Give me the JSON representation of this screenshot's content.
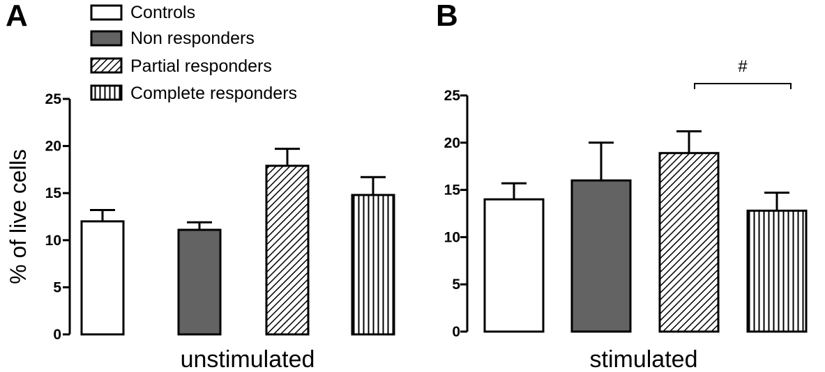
{
  "panel_labels": [
    "A",
    "B"
  ],
  "legend": [
    {
      "label": "Controls",
      "pattern": "white"
    },
    {
      "label": "Non responders",
      "pattern": "gray"
    },
    {
      "label": "Partial responders",
      "pattern": "diagonal"
    },
    {
      "label": "Complete responders",
      "pattern": "vertical"
    }
  ],
  "colors": {
    "gray_fill": "#636363",
    "stroke": "#000000"
  },
  "chart_data": [
    {
      "type": "bar",
      "panel": "A",
      "xlabel": "unstimulated",
      "ylabel": "% of live cells",
      "ylim": [
        0,
        25
      ],
      "yticks": [
        "0",
        "5",
        "10",
        "15",
        "20",
        "25"
      ],
      "categories": [
        "Controls",
        "Non responders",
        "Partial responders",
        "Complete responders"
      ],
      "values": [
        12.0,
        11.1,
        17.9,
        14.8
      ],
      "errors": [
        1.2,
        0.8,
        1.8,
        1.9
      ],
      "annotations": []
    },
    {
      "type": "bar",
      "panel": "B",
      "xlabel": "stimulated",
      "ylabel": "",
      "ylim": [
        0,
        25
      ],
      "yticks": [
        "0",
        "5",
        "10",
        "15",
        "20",
        "25"
      ],
      "categories": [
        "Controls",
        "Non responders",
        "Partial responders",
        "Complete responders"
      ],
      "values": [
        14.0,
        16.0,
        18.9,
        12.8
      ],
      "errors": [
        1.7,
        4.0,
        2.3,
        1.9
      ],
      "annotations": [
        {
          "text": "#",
          "from": "Partial responders",
          "to": "Complete responders"
        }
      ]
    }
  ]
}
